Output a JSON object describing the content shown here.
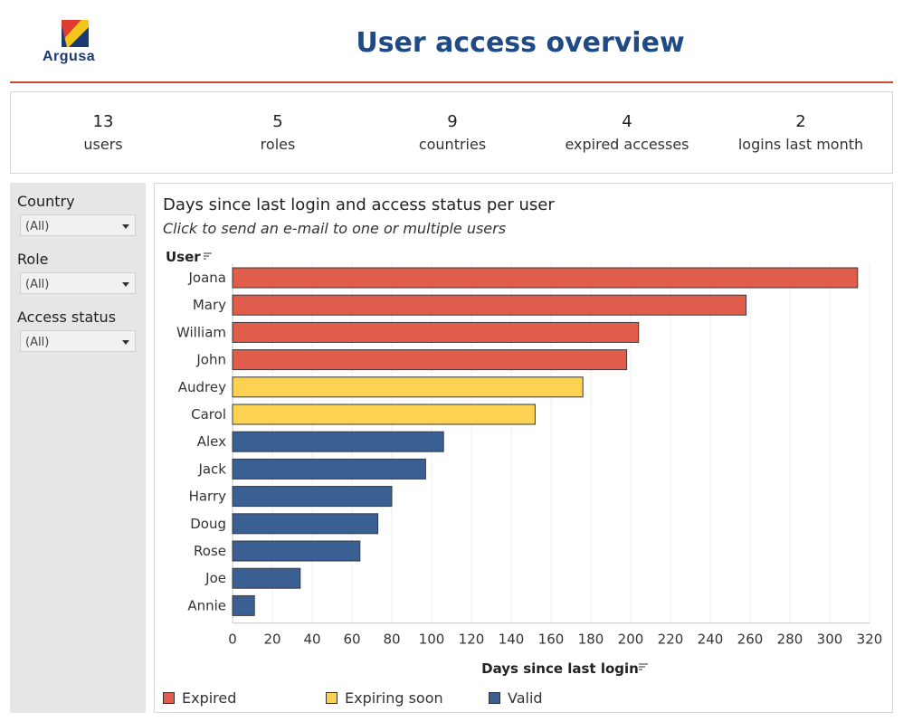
{
  "header": {
    "logo_text": "Argusa",
    "title": "User access overview"
  },
  "kpis": [
    {
      "value": "13",
      "label": "users"
    },
    {
      "value": "5",
      "label": "roles"
    },
    {
      "value": "9",
      "label": "countries"
    },
    {
      "value": "4",
      "label": "expired accesses"
    },
    {
      "value": "2",
      "label": "logins last month"
    }
  ],
  "filters": [
    {
      "label": "Country",
      "value": "(All)"
    },
    {
      "label": "Role",
      "value": "(All)"
    },
    {
      "label": "Access status",
      "value": "(All)"
    }
  ],
  "chart": {
    "title": "Days since last login and access status per user",
    "subtitle": "Click to send an e-mail to one or multiple users"
  },
  "colors": {
    "Expired": "#e05c4b",
    "Expiring soon": "#fdd253",
    "Valid": "#3a5f93",
    "brand_blue": "#1e4a85",
    "brand_red": "#c84a33"
  },
  "chart_data": {
    "type": "bar",
    "orientation": "horizontal",
    "title": "Days since last login and access status per user",
    "ylabel": "User",
    "xlabel": "Days since last login",
    "xlim": [
      0,
      320
    ],
    "x_ticks": [
      0,
      20,
      40,
      60,
      80,
      100,
      120,
      140,
      160,
      180,
      200,
      220,
      240,
      260,
      280,
      300,
      320
    ],
    "grid": true,
    "legend_placement": "bottom",
    "categories": [
      "Joana",
      "Mary",
      "William",
      "John",
      "Audrey",
      "Carol",
      "Alex",
      "Jack",
      "Harry",
      "Doug",
      "Rose",
      "Joe",
      "Annie"
    ],
    "values": [
      314,
      258,
      204,
      198,
      176,
      152,
      106,
      97,
      80,
      73,
      64,
      34,
      11
    ],
    "status": [
      "Expired",
      "Expired",
      "Expired",
      "Expired",
      "Expiring soon",
      "Expiring soon",
      "Valid",
      "Valid",
      "Valid",
      "Valid",
      "Valid",
      "Valid",
      "Valid"
    ],
    "legend": [
      "Expired",
      "Expiring soon",
      "Valid"
    ]
  }
}
